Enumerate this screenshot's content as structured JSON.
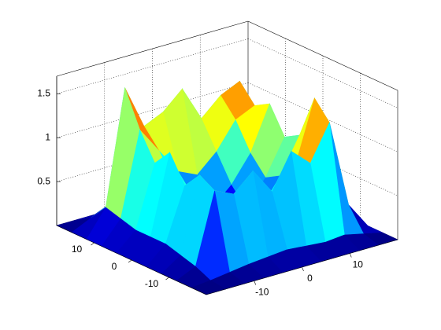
{
  "chart_data": {
    "type": "surface",
    "x": [
      -20,
      -16,
      -12,
      -8,
      -4,
      0,
      4,
      8,
      12,
      16,
      20
    ],
    "y": [
      -20,
      -16,
      -12,
      -8,
      -4,
      0,
      4,
      8,
      12,
      16,
      20
    ],
    "z": [
      [
        0,
        0,
        0,
        0,
        0,
        0,
        0,
        0,
        0,
        0,
        0
      ],
      [
        0,
        0.02,
        0.05,
        0.08,
        0.1,
        0.12,
        0.1,
        0.08,
        0.1,
        0.05,
        0
      ],
      [
        0,
        0.1,
        0.9,
        0.8,
        1.0,
        0.7,
        1.1,
        0.9,
        1.3,
        0.3,
        0
      ],
      [
        0,
        0.15,
        1.0,
        0.6,
        0.5,
        0.4,
        0.6,
        0.8,
        1.5,
        0.4,
        0
      ],
      [
        0,
        0.2,
        0.8,
        0.5,
        0.3,
        0.2,
        0.3,
        0.6,
        1.0,
        0.3,
        0
      ],
      [
        0,
        0.2,
        1.1,
        0.4,
        0.2,
        0.05,
        0.2,
        0.5,
        0.9,
        0.3,
        0
      ],
      [
        0,
        0.2,
        0.9,
        0.6,
        0.4,
        0.2,
        0.4,
        0.7,
        1.2,
        0.3,
        0
      ],
      [
        0,
        0.25,
        1.2,
        0.9,
        0.6,
        0.5,
        0.7,
        1.0,
        1.1,
        0.3,
        0
      ],
      [
        0,
        0.3,
        1.6,
        1.1,
        1.2,
        1.4,
        1.0,
        1.2,
        1.3,
        0.3,
        0
      ],
      [
        0,
        0.1,
        0.2,
        0.15,
        0.2,
        0.2,
        0.15,
        0.2,
        0.2,
        0.1,
        0
      ],
      [
        0,
        0,
        0,
        0,
        0,
        0,
        0,
        0,
        0,
        0,
        0
      ]
    ],
    "xlim": [
      -20,
      20
    ],
    "ylim": [
      -20,
      20
    ],
    "zlim": [
      0,
      1.7
    ],
    "xticks": [
      -10,
      0,
      10
    ],
    "yticks": [
      -10,
      0,
      10
    ],
    "zticks": [
      0.5,
      1,
      1.5
    ],
    "grid": true,
    "colormap": "jet"
  }
}
